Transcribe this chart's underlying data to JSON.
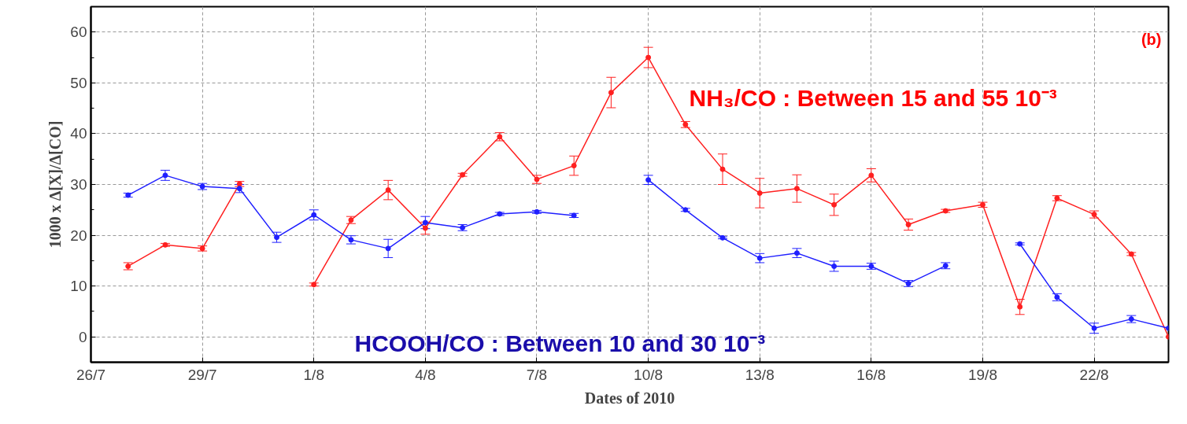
{
  "chart_data": {
    "type": "line",
    "xlabel": "Dates of 2010",
    "ylabel": "1000 x Δ[X]/Δ[CO]",
    "x": [
      "2010-07-27",
      "2010-07-28",
      "2010-07-29",
      "2010-07-30",
      "2010-07-31",
      "2010-08-01",
      "2010-08-02",
      "2010-08-03",
      "2010-08-04",
      "2010-08-05",
      "2010-08-06",
      "2010-08-07",
      "2010-08-08",
      "2010-08-09",
      "2010-08-10",
      "2010-08-11",
      "2010-08-12",
      "2010-08-13",
      "2010-08-14",
      "2010-08-15",
      "2010-08-16",
      "2010-08-17",
      "2010-08-18",
      "2010-08-19",
      "2010-08-20",
      "2010-08-21",
      "2010-08-22",
      "2010-08-23",
      "2010-08-24"
    ],
    "series": [
      {
        "color": "#ff2020",
        "values": [
          13.9,
          18.1,
          17.4,
          30.1,
          null,
          10.3,
          23.0,
          28.9,
          21.4,
          31.9,
          39.4,
          31.0,
          33.7,
          48.1,
          55.0,
          41.8,
          33.0,
          28.3,
          29.2,
          26.0,
          31.8,
          22.1,
          24.8,
          26.0,
          5.9,
          27.3,
          24.1,
          16.3,
          0.0
        ],
        "errors": [
          0.7,
          0.3,
          0.5,
          0.5,
          null,
          0.3,
          0.7,
          1.9,
          1.2,
          0.3,
          0.8,
          0.8,
          1.9,
          3,
          2,
          0.6,
          3,
          2.9,
          2.7,
          2.1,
          1.3,
          1.1,
          0.3,
          0.5,
          1.5,
          0.5,
          0.7,
          0.3,
          null
        ]
      },
      {
        "color": "#2020ff",
        "values": [
          27.9,
          31.8,
          29.6,
          29.2,
          19.6,
          24.0,
          19.1,
          17.4,
          22.5,
          21.5,
          24.2,
          24.6,
          23.9,
          null,
          30.9,
          25.0,
          19.5,
          15.5,
          16.5,
          13.9,
          13.9,
          10.5,
          14.0,
          null,
          18.3,
          7.8,
          1.7,
          3.5,
          1.7
        ],
        "errors": [
          0.4,
          1,
          0.6,
          0.8,
          1,
          1,
          0.8,
          1.8,
          1.2,
          0.6,
          0.3,
          0.3,
          0.4,
          null,
          0.9,
          0.3,
          0.2,
          0.9,
          0.9,
          1,
          0.6,
          0.6,
          0.6,
          null,
          0.2,
          0.7,
          1,
          0.7,
          null
        ]
      }
    ],
    "annotations": [
      "NH₃/CO : Between 15 and 55 10⁻³",
      "HCOOH/CO : Between 10 and 30 10⁻³",
      "(b)"
    ],
    "xlim": [
      "2010-07-26",
      "2010-08-24"
    ],
    "xticks": [
      {
        "value": "2010-07-26",
        "label": "26/7"
      },
      {
        "value": "2010-07-29",
        "label": "29/7"
      },
      {
        "value": "2010-08-01",
        "label": "1/8"
      },
      {
        "value": "2010-08-04",
        "label": "4/8"
      },
      {
        "value": "2010-08-07",
        "label": "7/8"
      },
      {
        "value": "2010-08-10",
        "label": "10/8"
      },
      {
        "value": "2010-08-13",
        "label": "13/8"
      },
      {
        "value": "2010-08-16",
        "label": "16/8"
      },
      {
        "value": "2010-08-19",
        "label": "19/8"
      },
      {
        "value": "2010-08-22",
        "label": "22/8"
      }
    ],
    "ylim": [
      -5,
      65
    ],
    "yticks": [
      0,
      10,
      20,
      30,
      40,
      50,
      60
    ],
    "grid": true,
    "marker": "circle",
    "line_style": "solid"
  }
}
